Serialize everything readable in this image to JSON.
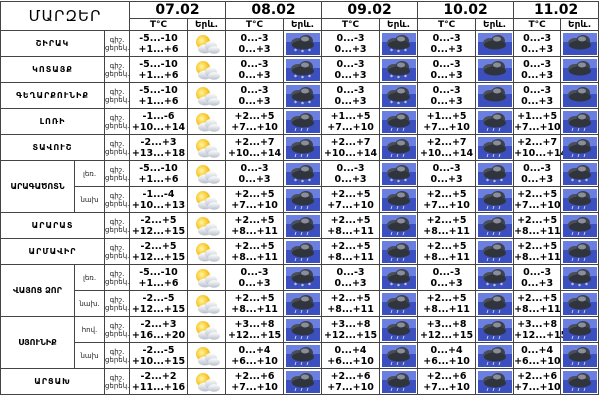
{
  "header": {
    "region_title": "ՄԱՐԶԵՐ",
    "temp_label": "T°C",
    "weather_label": "Երև.",
    "dates": [
      "07.02",
      "08.02",
      "09.02",
      "10.02",
      "11.02"
    ]
  },
  "row_labels": {
    "day": "ցերեկ.",
    "night": "գիշ."
  },
  "rows": [
    {
      "region": "ՇԻՐԱԿ",
      "temps": [
        [
          "-5...-10",
          "+1...+6"
        ],
        [
          "0...-3",
          "0...+3"
        ],
        [
          "0...-3",
          "0...+3"
        ],
        [
          "0...-3",
          "0...+3"
        ],
        [
          "0...-3",
          "0...+3"
        ]
      ],
      "icons": [
        "sun-cloud",
        "snow",
        "snow",
        "cloud",
        "cloud"
      ]
    },
    {
      "region": "ԿՈՏԱՅՔ",
      "temps": [
        [
          "-5...-10",
          "+1...+6"
        ],
        [
          "0...-3",
          "0...+3"
        ],
        [
          "0...-3",
          "0...+3"
        ],
        [
          "0...-3",
          "0...+3"
        ],
        [
          "0...-3",
          "0...+3"
        ]
      ],
      "icons": [
        "sun-cloud",
        "snow",
        "snow",
        "cloud",
        "cloud"
      ]
    },
    {
      "region": "ԳԵՂԱՐՔՈՒՆԻՔ",
      "temps": [
        [
          "-5...-10",
          "+1...+6"
        ],
        [
          "0...-3",
          "0...+3"
        ],
        [
          "0...-3",
          "0...+3"
        ],
        [
          "0...-3",
          "0...+3"
        ],
        [
          "0...-3",
          "0...+3"
        ]
      ],
      "icons": [
        "sun-cloud",
        "snow",
        "snow",
        "cloud",
        "cloud"
      ]
    },
    {
      "region": "ԼՈՌԻ",
      "temps": [
        [
          "-1...-6",
          "+10...+14"
        ],
        [
          "+2...+5",
          "+7...+10"
        ],
        [
          "+1...+5",
          "+7...+10"
        ],
        [
          "+1...+5",
          "+7...+10"
        ],
        [
          "+1...+5",
          "+7...+10"
        ]
      ],
      "icons": [
        "sun-cloud",
        "rain",
        "rain",
        "rain",
        "rain"
      ]
    },
    {
      "region": "ՏԱՎՈՒՇ",
      "temps": [
        [
          "-2...+3",
          "+13...+18"
        ],
        [
          "+2...+7",
          "+10...+14"
        ],
        [
          "+2...+7",
          "+10...+14"
        ],
        [
          "+2...+7",
          "+10...+14"
        ],
        [
          "+2...+7",
          "+10...+14"
        ]
      ],
      "icons": [
        "sun-cloud",
        "rain",
        "rain",
        "rain",
        "rain"
      ]
    },
    {
      "region": "ԱՐԱԳԱԾՈՏՆ",
      "sub": "լեռ.",
      "temps": [
        [
          "-5...-10",
          "+1...+6"
        ],
        [
          "0...-3",
          "0...+3"
        ],
        [
          "0...-3",
          "0...+3"
        ],
        [
          "0...-3",
          "0...+3"
        ],
        [
          "0...-3",
          "0...+3"
        ]
      ],
      "icons": [
        "sun-cloud",
        "snow",
        "snow",
        "snow",
        "snow"
      ]
    },
    {
      "region": "",
      "sub": "նախ",
      "temps": [
        [
          "-1...-4",
          "+10...+13"
        ],
        [
          "+2...+5",
          "+7...+10"
        ],
        [
          "+2...+5",
          "+7...+10"
        ],
        [
          "+2...+5",
          "+7...+10"
        ],
        [
          "+2...+5",
          "+7...+10"
        ]
      ],
      "icons": [
        "sun-cloud",
        "rain",
        "rain",
        "rain",
        "rain"
      ]
    },
    {
      "region": "ԱՐԱՐԱՏ",
      "temps": [
        [
          "-2...+5",
          "+12...+15"
        ],
        [
          "+2...+5",
          "+8...+11"
        ],
        [
          "+2...+5",
          "+8...+11"
        ],
        [
          "+2...+5",
          "+8...+11"
        ],
        [
          "+2...+5",
          "+8...+11"
        ]
      ],
      "icons": [
        "sun-cloud",
        "rain",
        "rain",
        "rain",
        "rain"
      ]
    },
    {
      "region": "ԱՐՄԱՎԻՐ",
      "temps": [
        [
          "-2...+5",
          "+12...+15"
        ],
        [
          "+2...+5",
          "+8...+11"
        ],
        [
          "+2...+5",
          "+8...+11"
        ],
        [
          "+2...+5",
          "+8...+11"
        ],
        [
          "+2...+5",
          "+8...+11"
        ]
      ],
      "icons": [
        "sun-cloud",
        "rain",
        "rain",
        "rain",
        "rain"
      ]
    },
    {
      "region": "ՎԱՅՈՑ ՁՈՐ",
      "sub": "լեռ.",
      "temps": [
        [
          "-5...-10",
          "+1...+6"
        ],
        [
          "0...-3",
          "0...+3"
        ],
        [
          "0...-3",
          "0...+3"
        ],
        [
          "0...-3",
          "0...+3"
        ],
        [
          "0...-3",
          "0...+3"
        ]
      ],
      "icons": [
        "sun-cloud",
        "snow",
        "snow",
        "snow",
        "snow"
      ]
    },
    {
      "region": "",
      "sub": "նախ.",
      "temps": [
        [
          "-2...-5",
          "+12...+15"
        ],
        [
          "+2...+5",
          "+8...+11"
        ],
        [
          "+2...+5",
          "+8...+11"
        ],
        [
          "+2...+5",
          "+8...+11"
        ],
        [
          "+2...+5",
          "+8...+11"
        ]
      ],
      "icons": [
        "sun-cloud",
        "rain",
        "rain",
        "rain",
        "rain"
      ]
    },
    {
      "region": "ՍՅՈՒՆԻՔ",
      "sub": "հով.",
      "temps": [
        [
          "-2...+3",
          "+16...+20"
        ],
        [
          "+3...+8",
          "+12...+15"
        ],
        [
          "+3...+8",
          "+12...+15"
        ],
        [
          "+3...+8",
          "+12...+15"
        ],
        [
          "+3...+8",
          "+12...+15"
        ]
      ],
      "icons": [
        "sun-cloud",
        "rain",
        "rain",
        "rain",
        "rain"
      ]
    },
    {
      "region": "",
      "sub": "նախ",
      "temps": [
        [
          "-2...-5",
          "+10...+15"
        ],
        [
          "0...+4",
          "+6...+10"
        ],
        [
          "0...+4",
          "+6...+10"
        ],
        [
          "0...+4",
          "+6...+10"
        ],
        [
          "0...+4",
          "+6...+10"
        ]
      ],
      "icons": [
        "sun-cloud",
        "rain",
        "rain",
        "rain",
        "rain"
      ]
    },
    {
      "region": "ԱՐՑԱԽ",
      "temps": [
        [
          "-2...+2",
          "+11...+16"
        ],
        [
          "+2...+6",
          "+7...+10"
        ],
        [
          "+2...+6",
          "+7...+10"
        ],
        [
          "+2...+6",
          "+7...+10"
        ],
        [
          "+2...+6",
          "+7...+10"
        ]
      ],
      "icons": [
        "sun-cloud",
        "rain",
        "rain",
        "rain",
        "rain"
      ]
    }
  ]
}
